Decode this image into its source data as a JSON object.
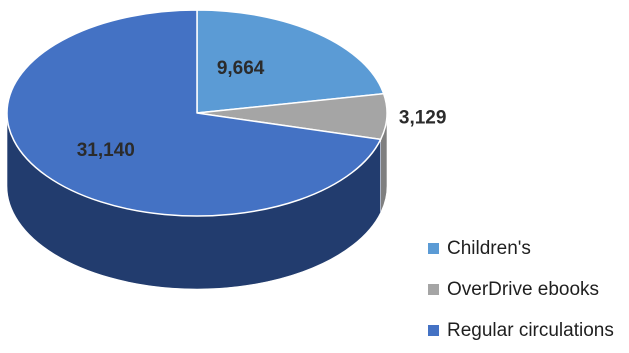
{
  "chart_data": {
    "type": "pie",
    "title": "",
    "categories": [
      "Children's",
      "OverDrive ebooks",
      "Regular circulations"
    ],
    "values": [
      9664,
      3129,
      31140
    ],
    "data_labels": [
      "9,664",
      "3,129",
      "31,140"
    ],
    "colors": [
      "#5b9bd5",
      "#a5a5a5",
      "#4472c4"
    ],
    "legend_position": "bottom-right",
    "style": "3d"
  }
}
